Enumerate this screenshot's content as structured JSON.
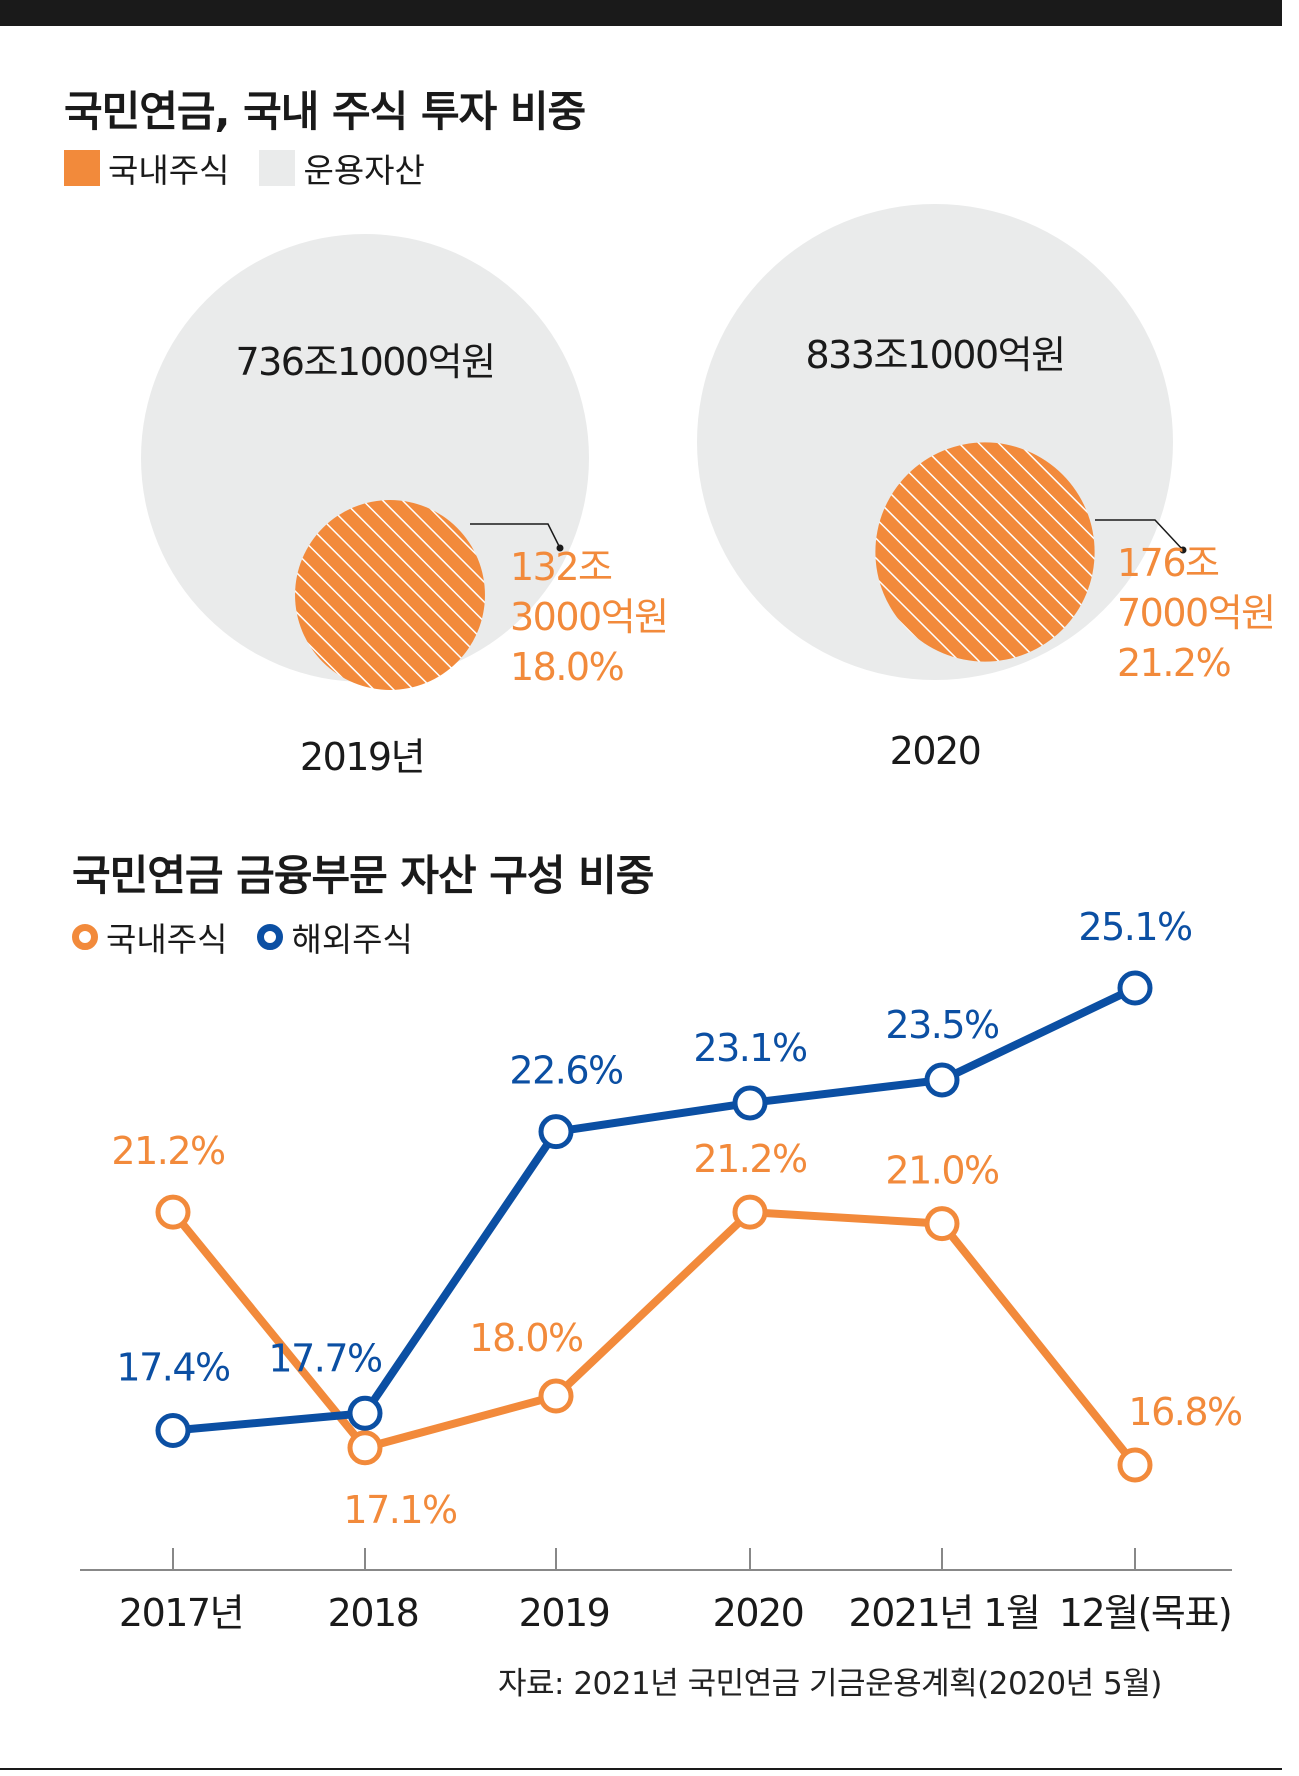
{
  "colors": {
    "domestic": "#f28a3b",
    "overseas": "#0b4fa3",
    "assets": "#eaebeb",
    "ink": "#1a1a1a"
  },
  "section1": {
    "title": "국민연금, 국내 주식 투자 비중",
    "legend": [
      {
        "label": "국내주식",
        "color": "#f28a3b"
      },
      {
        "label": "운용자산",
        "color": "#eaebeb"
      }
    ]
  },
  "section2": {
    "title": "국민연금 금융부문 자산 구성 비중",
    "legend": [
      {
        "label": "국내주식",
        "color": "#f28a3b"
      },
      {
        "label": "해외주식",
        "color": "#0b4fa3"
      }
    ]
  },
  "source": "자료: 2021년 국민연금 기금운용계획(2020년 5월)",
  "chart_data": [
    {
      "type": "bubble",
      "title": "국민연금, 국내 주식 투자 비중",
      "items": [
        {
          "year_label": "2019년",
          "total_assets": 736.1,
          "total_label": "736조1000억원",
          "domestic_stock": 132.3,
          "domestic_label": [
            "132조",
            "3000억원",
            "18.0%"
          ],
          "share_pct": 18.0
        },
        {
          "year_label": "2020",
          "total_assets": 833.1,
          "total_label": "833조1000억원",
          "domestic_stock": 176.7,
          "domestic_label": [
            "176조",
            "7000억원",
            "21.2%"
          ],
          "share_pct": 21.2
        }
      ],
      "units": "조원"
    },
    {
      "type": "line",
      "title": "국민연금 금융부문 자산 구성 비중",
      "categories": [
        "2017년",
        "2018",
        "2019",
        "2020",
        "2021년 1월",
        "12월(목표)"
      ],
      "series": [
        {
          "name": "국내주식",
          "values": [
            21.2,
            17.1,
            18.0,
            21.2,
            21.0,
            16.8
          ],
          "labels": [
            "21.2%",
            "17.1%",
            "18.0%",
            "21.2%",
            "21.0%",
            "16.8%"
          ]
        },
        {
          "name": "해외주식",
          "values": [
            17.4,
            17.7,
            22.6,
            23.1,
            23.5,
            25.1
          ],
          "labels": [
            "17.4%",
            "17.7%",
            "22.6%",
            "23.1%",
            "23.5%",
            "25.1%"
          ]
        }
      ],
      "ylabel": "%",
      "ylim": [
        15,
        26
      ]
    }
  ]
}
